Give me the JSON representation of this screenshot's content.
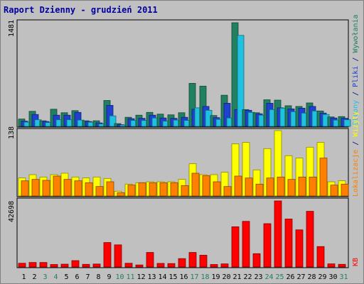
{
  "chart_data": [
    {
      "type": "bar",
      "title": "Raport Dzienny -  grudzień 2011",
      "ylabel": "1481",
      "ylim": [
        0,
        1481
      ],
      "categories": [
        "1",
        "2",
        "3",
        "4",
        "5",
        "6",
        "7",
        "8",
        "9",
        "10",
        "11",
        "12",
        "13",
        "14",
        "15",
        "16",
        "17",
        "18",
        "19",
        "20",
        "21",
        "22",
        "23",
        "24",
        "25",
        "26",
        "27",
        "28",
        "29",
        "30",
        "31"
      ],
      "weekend_days": [
        "3",
        "4",
        "10",
        "11",
        "17",
        "18",
        "24",
        "25",
        "31"
      ],
      "series": [
        {
          "name": "Wywołania",
          "color": "#208060",
          "values": [
            105,
            215,
            80,
            245,
            195,
            225,
            80,
            80,
            370,
            40,
            130,
            160,
            200,
            175,
            165,
            195,
            615,
            575,
            155,
            445,
            1481,
            240,
            195,
            380,
            375,
            295,
            285,
            335,
            220,
            135,
            140
          ]
        },
        {
          "name": "Pliki",
          "color": "#2040d0",
          "values": [
            75,
            170,
            70,
            160,
            160,
            200,
            70,
            50,
            300,
            25,
            110,
            115,
            160,
            120,
            115,
            130,
            245,
            285,
            125,
            330,
            240,
            230,
            180,
            330,
            265,
            250,
            260,
            285,
            190,
            120,
            115
          ]
        },
        {
          "name": "Strony",
          "color": "#20c0e0",
          "values": [
            60,
            95,
            55,
            95,
            95,
            90,
            60,
            35,
            150,
            20,
            85,
            85,
            120,
            75,
            90,
            85,
            265,
            230,
            100,
            120,
            1300,
            200,
            160,
            240,
            260,
            210,
            190,
            220,
            170,
            90,
            95
          ]
        }
      ]
    },
    {
      "type": "bar",
      "ylabel": "138",
      "ylim": [
        0,
        138
      ],
      "categories": [
        "1",
        "2",
        "3",
        "4",
        "5",
        "6",
        "7",
        "8",
        "9",
        "10",
        "11",
        "12",
        "13",
        "14",
        "15",
        "16",
        "17",
        "18",
        "19",
        "20",
        "21",
        "22",
        "23",
        "24",
        "25",
        "26",
        "27",
        "28",
        "29",
        "30",
        "31"
      ],
      "series": [
        {
          "name": "Wizyty",
          "color": "#ffff00",
          "values": [
            38,
            45,
            40,
            45,
            48,
            40,
            38,
            40,
            37,
            10,
            25,
            28,
            30,
            30,
            30,
            35,
            68,
            45,
            45,
            50,
            110,
            113,
            55,
            100,
            138,
            85,
            80,
            103,
            113,
            30,
            32
          ]
        },
        {
          "name": "Lokalizacje",
          "color": "#ff8000",
          "values": [
            32,
            35,
            33,
            42,
            35,
            32,
            28,
            20,
            30,
            7,
            23,
            28,
            28,
            28,
            28,
            22,
            48,
            43,
            30,
            20,
            42,
            38,
            25,
            38,
            40,
            35,
            40,
            40,
            80,
            23,
            25
          ]
        }
      ]
    },
    {
      "type": "bar",
      "ylabel": "42698",
      "ylim": [
        0,
        42698
      ],
      "categories": [
        "1",
        "2",
        "3",
        "4",
        "5",
        "6",
        "7",
        "8",
        "9",
        "10",
        "11",
        "12",
        "13",
        "14",
        "15",
        "16",
        "17",
        "18",
        "19",
        "20",
        "21",
        "22",
        "23",
        "24",
        "25",
        "26",
        "27",
        "28",
        "29",
        "30",
        "31"
      ],
      "series": [
        {
          "name": "KB",
          "color": "#ff0000",
          "values": [
            2400,
            2900,
            2900,
            1600,
            1800,
            4100,
            1700,
            1900,
            15800,
            14300,
            2400,
            1300,
            9400,
            2300,
            2200,
            5400,
            9400,
            7600,
            1600,
            2000,
            26000,
            29500,
            8600,
            28000,
            42698,
            31000,
            24000,
            36000,
            13200,
            2000,
            1700
          ]
        }
      ]
    }
  ]
}
